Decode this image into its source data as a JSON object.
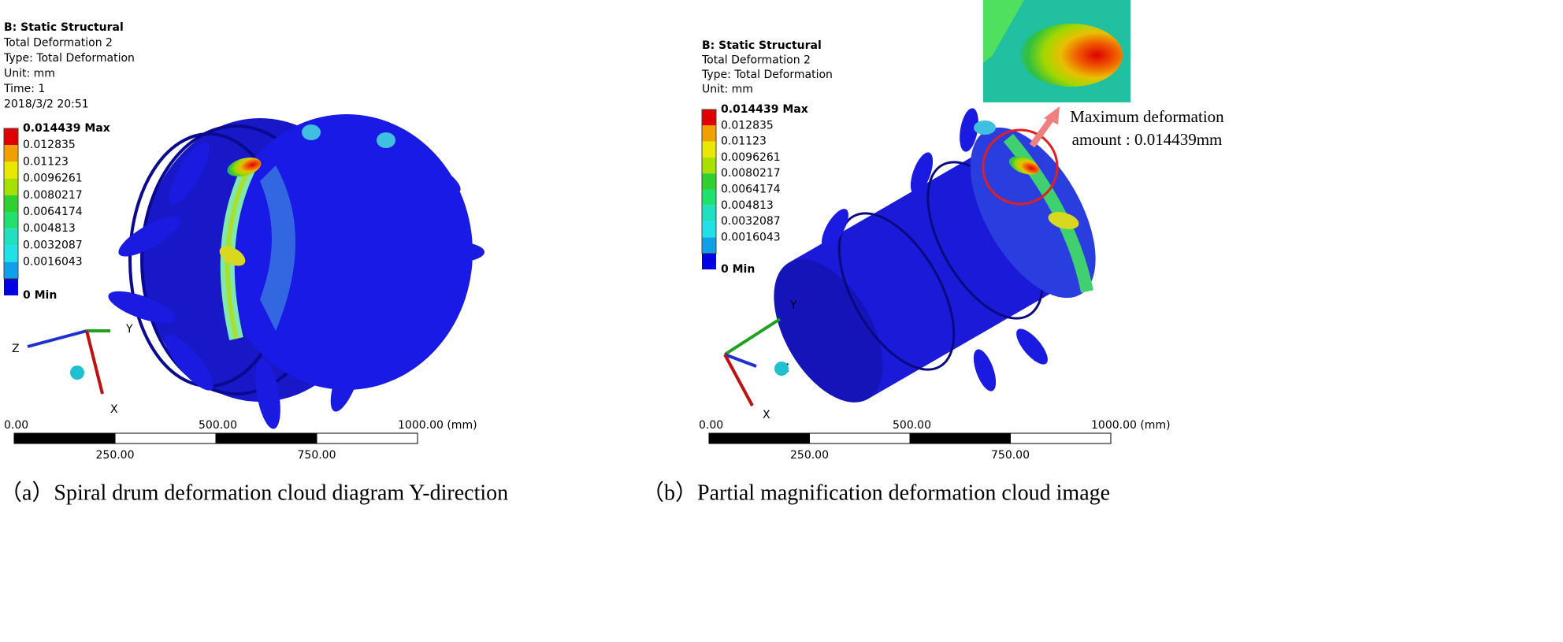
{
  "panels": [
    {
      "header": [
        "B: Static Structural",
        "Total Deformation 2",
        "Type: Total Deformation",
        "Unit: mm",
        "Time: 1",
        "2018/3/2 20:51"
      ],
      "legend": [
        "0.014439 Max",
        "0.012835",
        "0.01123",
        "0.0096261",
        "0.0080217",
        "0.0064174",
        "0.004813",
        "0.0032087",
        "0.0016043",
        "0 Min"
      ],
      "scale_top": [
        "0.00",
        "500.00",
        "1000.00 (mm)"
      ],
      "scale_bottom": [
        "250.00",
        "750.00"
      ],
      "axes": [
        "Z",
        "Y",
        "X"
      ],
      "caption": "（a）Spiral drum deformation cloud diagram Y-direction"
    },
    {
      "header": [
        "B: Static Structural",
        "Total Deformation 2",
        "Type: Total Deformation",
        "Unit: mm"
      ],
      "legend": [
        "0.014439 Max",
        "0.012835",
        "0.01123",
        "0.0096261",
        "0.0080217",
        "0.0064174",
        "0.004813",
        "0.0032087",
        "0.0016043",
        "0 Min"
      ],
      "scale_top": [
        "0.00",
        "500.00",
        "1000.00 (mm)"
      ],
      "scale_bottom": [
        "250.00",
        "750.00"
      ],
      "axes": [
        "Y",
        "Z",
        "X"
      ],
      "annotation": [
        "Maximum deformation",
        "amount : 0.014439mm"
      ],
      "caption": "（b）Partial magnification deformation cloud image"
    }
  ]
}
